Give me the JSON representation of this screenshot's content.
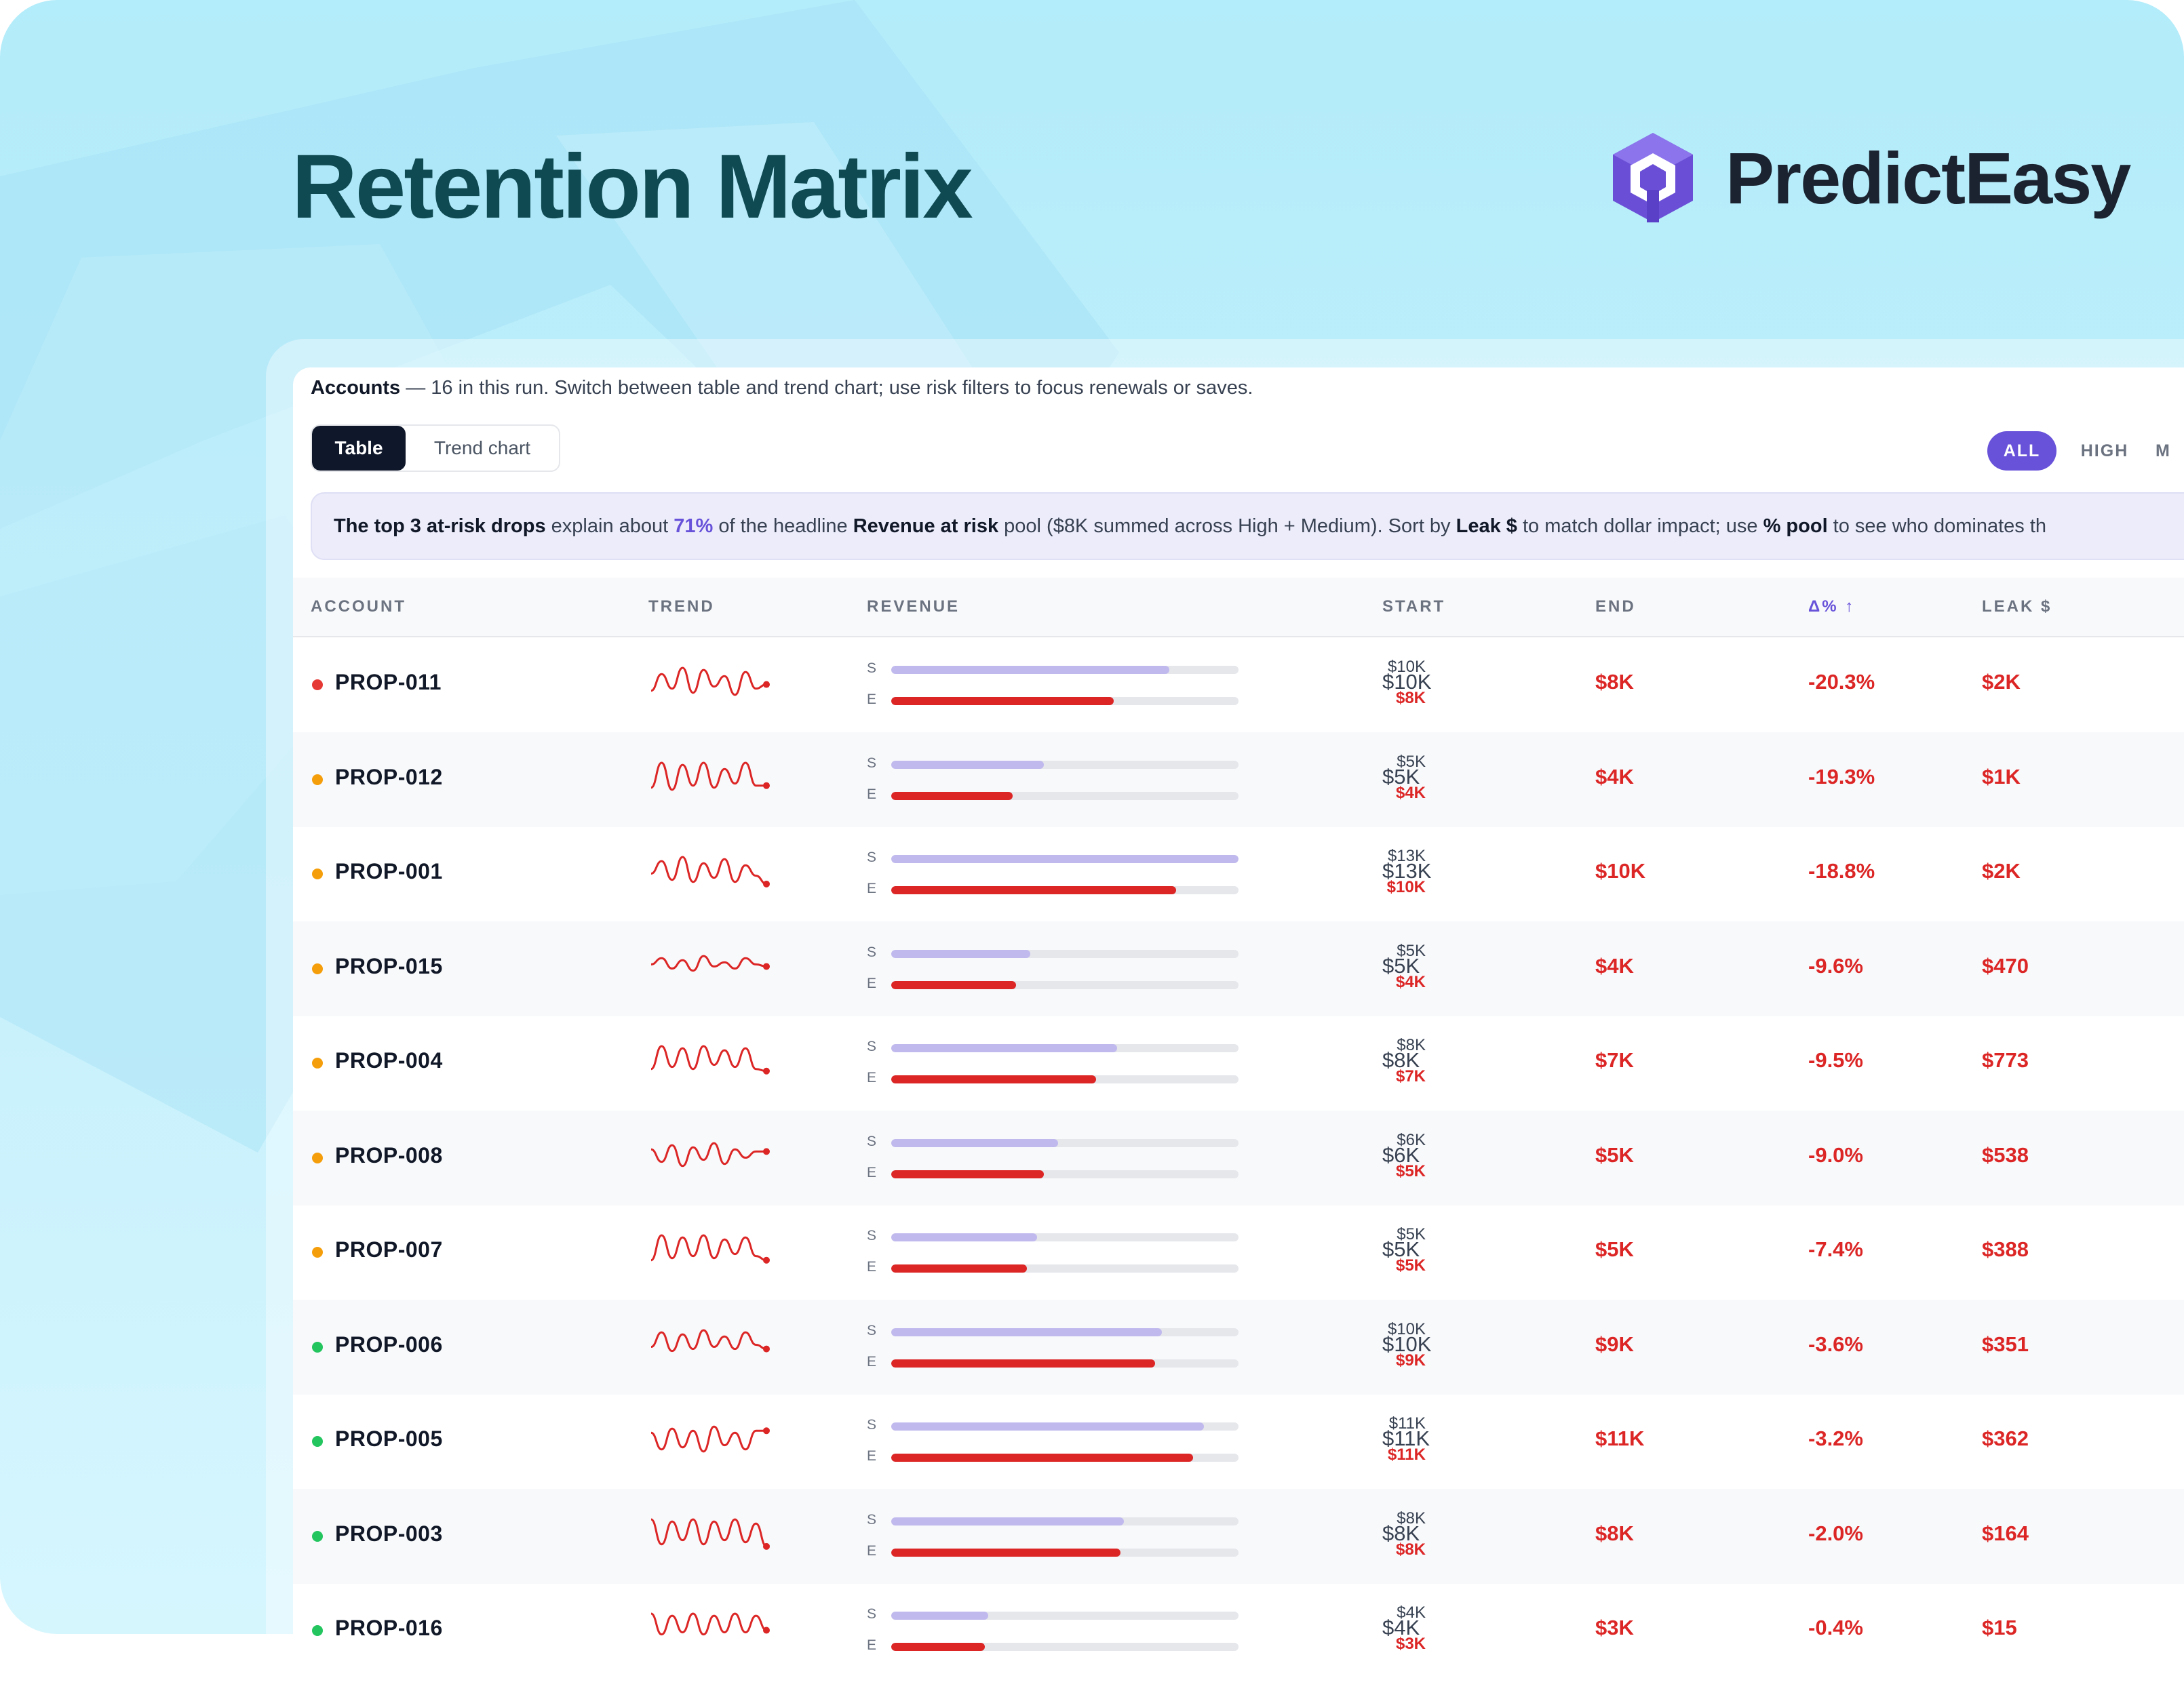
{
  "page": {
    "title": "Retention Matrix",
    "brand": "PredictEasy"
  },
  "intro": {
    "label": "Accounts",
    "text": " — 16 in this run. Switch between table and trend chart; use risk filters to focus renewals or saves."
  },
  "view_toggle": {
    "table": "Table",
    "chart": "Trend chart",
    "selected": "Table"
  },
  "risk_filters": {
    "all": "ALL",
    "high": "HIGH",
    "medium": "M",
    "selected": "ALL"
  },
  "callout": {
    "p1": "The top 3 at-risk drops",
    "p2": " explain about ",
    "p3": "71%",
    "p4": " of the headline ",
    "p5": "Revenue at risk",
    "p6": " pool ($8K summed across High + Medium). Sort by ",
    "p7": "Leak $",
    "p8": " to match dollar impact; use ",
    "p9": "% pool",
    "p10": " to see who dominates th"
  },
  "table": {
    "headers": {
      "account": "ACCOUNT",
      "trend": "TREND",
      "revenue": "REVENUE",
      "start": "START",
      "end": "END",
      "delta": "Δ% ↑",
      "leak": "LEAK $"
    },
    "bar_labels": {
      "start": "S",
      "end": "E"
    },
    "colors": {
      "high": "#e53935",
      "medium": "#f59e0b",
      "low": "#22c55e",
      "negative": "#dc2626",
      "accent": "#6752d9"
    },
    "rows": [
      {
        "account": "PROP-011",
        "risk": "high",
        "start": "$10K",
        "end": "$8K",
        "delta": "-20.3%",
        "leak": "$2K",
        "start_frac": 0.8,
        "end_frac": 0.64,
        "trend": [
          5,
          13,
          6,
          16,
          4,
          15,
          7,
          12,
          3,
          14,
          6,
          8
        ]
      },
      {
        "account": "PROP-012",
        "risk": "medium",
        "start": "$5K",
        "end": "$4K",
        "delta": "-19.3%",
        "leak": "$1K",
        "start_frac": 0.44,
        "end_frac": 0.35,
        "trend": [
          4,
          16,
          3,
          15,
          5,
          16,
          4,
          13,
          6,
          16,
          5,
          5
        ]
      },
      {
        "account": "PROP-001",
        "risk": "medium",
        "start": "$13K",
        "end": "$10K",
        "delta": "-18.8%",
        "leak": "$2K",
        "start_frac": 1.0,
        "end_frac": 0.82,
        "trend": [
          8,
          14,
          5,
          16,
          4,
          13,
          6,
          15,
          4,
          12,
          7,
          3
        ]
      },
      {
        "account": "PROP-015",
        "risk": "medium",
        "start": "$5K",
        "end": "$4K",
        "delta": "-9.6%",
        "leak": "$470",
        "start_frac": 0.4,
        "end_frac": 0.36,
        "trend": [
          10,
          13,
          8,
          12,
          7,
          14,
          9,
          11,
          8,
          13,
          10,
          9
        ]
      },
      {
        "account": "PROP-004",
        "risk": "medium",
        "start": "$8K",
        "end": "$7K",
        "delta": "-9.5%",
        "leak": "$773",
        "start_frac": 0.65,
        "end_frac": 0.59,
        "trend": [
          5,
          16,
          6,
          15,
          5,
          16,
          7,
          14,
          6,
          15,
          5,
          4
        ]
      },
      {
        "account": "PROP-008",
        "risk": "medium",
        "start": "$6K",
        "end": "$5K",
        "delta": "-9.0%",
        "leak": "$538",
        "start_frac": 0.48,
        "end_frac": 0.44,
        "trend": [
          12,
          6,
          14,
          4,
          13,
          7,
          15,
          5,
          12,
          8,
          11,
          11
        ]
      },
      {
        "account": "PROP-007",
        "risk": "medium",
        "start": "$5K",
        "end": "$5K",
        "delta": "-7.4%",
        "leak": "$388",
        "start_frac": 0.42,
        "end_frac": 0.39,
        "trend": [
          4,
          16,
          5,
          15,
          6,
          16,
          5,
          14,
          7,
          15,
          6,
          4
        ]
      },
      {
        "account": "PROP-006",
        "risk": "low",
        "start": "$10K",
        "end": "$9K",
        "delta": "-3.6%",
        "leak": "$351",
        "start_frac": 0.78,
        "end_frac": 0.76,
        "trend": [
          8,
          15,
          6,
          14,
          7,
          16,
          8,
          13,
          7,
          15,
          9,
          7
        ]
      },
      {
        "account": "PROP-005",
        "risk": "low",
        "start": "$11K",
        "end": "$11K",
        "delta": "-3.2%",
        "leak": "$362",
        "start_frac": 0.9,
        "end_frac": 0.87,
        "trend": [
          12,
          4,
          14,
          5,
          13,
          3,
          15,
          6,
          12,
          4,
          13,
          13
        ]
      },
      {
        "account": "PROP-003",
        "risk": "low",
        "start": "$8K",
        "end": "$8K",
        "delta": "-2.0%",
        "leak": "$164",
        "start_frac": 0.67,
        "end_frac": 0.66,
        "trend": [
          16,
          4,
          15,
          6,
          16,
          4,
          15,
          6,
          16,
          5,
          14,
          3
        ]
      },
      {
        "account": "PROP-016",
        "risk": "low",
        "start": "$4K",
        "end": "$3K",
        "delta": "-0.4%",
        "leak": "$15",
        "start_frac": 0.28,
        "end_frac": 0.27,
        "trend": [
          16,
          6,
          15,
          7,
          16,
          6,
          15,
          7,
          16,
          7,
          15,
          8
        ]
      }
    ]
  }
}
